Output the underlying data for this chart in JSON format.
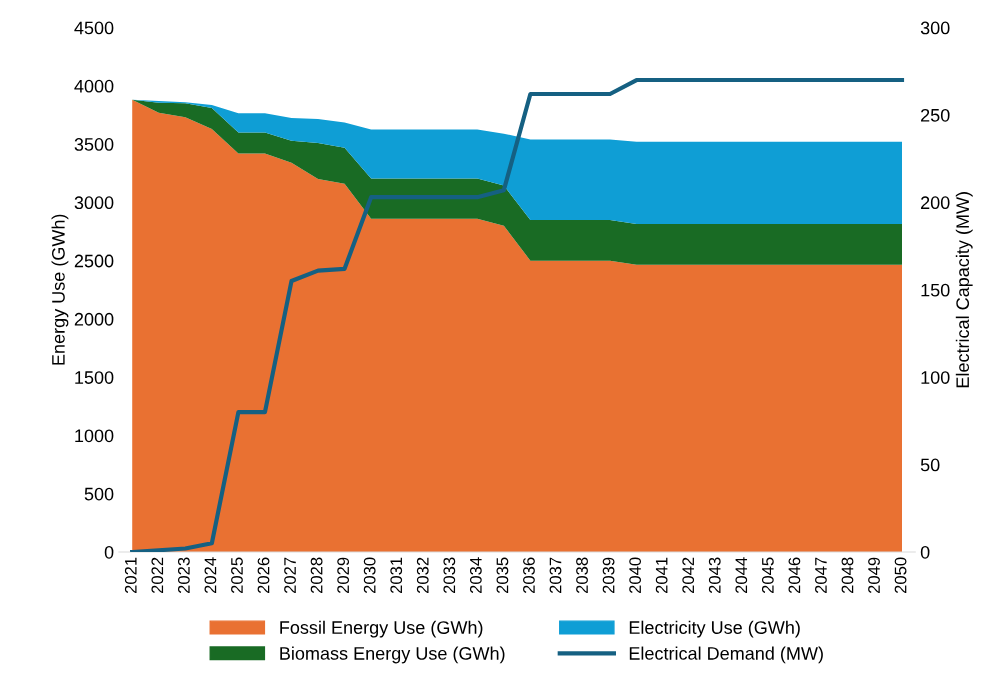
{
  "chart_data": {
    "type": "area",
    "stacked": true,
    "categories": [
      "2021",
      "2022",
      "2023",
      "2024",
      "2025",
      "2026",
      "2027",
      "2028",
      "2029",
      "2030",
      "2031",
      "2032",
      "2033",
      "2034",
      "2035",
      "2036",
      "2037",
      "2038",
      "2039",
      "2040",
      "2041",
      "2042",
      "2043",
      "2044",
      "2045",
      "2046",
      "2047",
      "2048",
      "2049",
      "2050"
    ],
    "series": [
      {
        "name": "Fossil Energy Use (GWh)",
        "color": "#e97132",
        "values": [
          3880,
          3770,
          3730,
          3630,
          3420,
          3420,
          3340,
          3200,
          3160,
          2860,
          2860,
          2860,
          2860,
          2860,
          2800,
          2500,
          2500,
          2500,
          2500,
          2465,
          2465,
          2465,
          2465,
          2465,
          2465,
          2465,
          2465,
          2465,
          2465,
          2465
        ]
      },
      {
        "name": "Biomass Energy Use (GWh)",
        "color": "#196b24",
        "values": [
          0,
          85,
          120,
          180,
          180,
          180,
          190,
          310,
          310,
          345,
          345,
          345,
          345,
          345,
          345,
          350,
          350,
          350,
          350,
          350,
          350,
          350,
          350,
          350,
          350,
          350,
          350,
          350,
          350,
          350
        ]
      },
      {
        "name": "Electricity Use (GWh)",
        "color": "#0f9ed5",
        "values": [
          0,
          15,
          10,
          25,
          165,
          165,
          195,
          205,
          215,
          420,
          420,
          420,
          420,
          420,
          445,
          690,
          690,
          690,
          690,
          705,
          705,
          705,
          705,
          705,
          705,
          705,
          705,
          705,
          705,
          705
        ]
      },
      {
        "name": "Electrical Demand (MW)",
        "type": "line",
        "axis": "y2",
        "color": "#156082",
        "values": [
          0,
          1,
          2,
          5,
          80,
          80,
          155,
          161,
          162,
          203,
          203,
          203,
          203,
          203,
          207,
          262,
          262,
          262,
          262,
          270,
          270,
          270,
          270,
          270,
          270,
          270,
          270,
          270,
          270,
          270
        ]
      }
    ],
    "ylabel": "Energy Use (GWh)",
    "y2label": "Electrical Capacity (MW)",
    "ylim": [
      0,
      4500
    ],
    "yticks": [
      0,
      500,
      1000,
      1500,
      2000,
      2500,
      3000,
      3500,
      4000,
      4500
    ],
    "y2lim": [
      0,
      300
    ],
    "y2ticks": [
      0,
      50,
      100,
      150,
      200,
      250,
      300
    ],
    "legend": "bottom",
    "grid": false
  }
}
